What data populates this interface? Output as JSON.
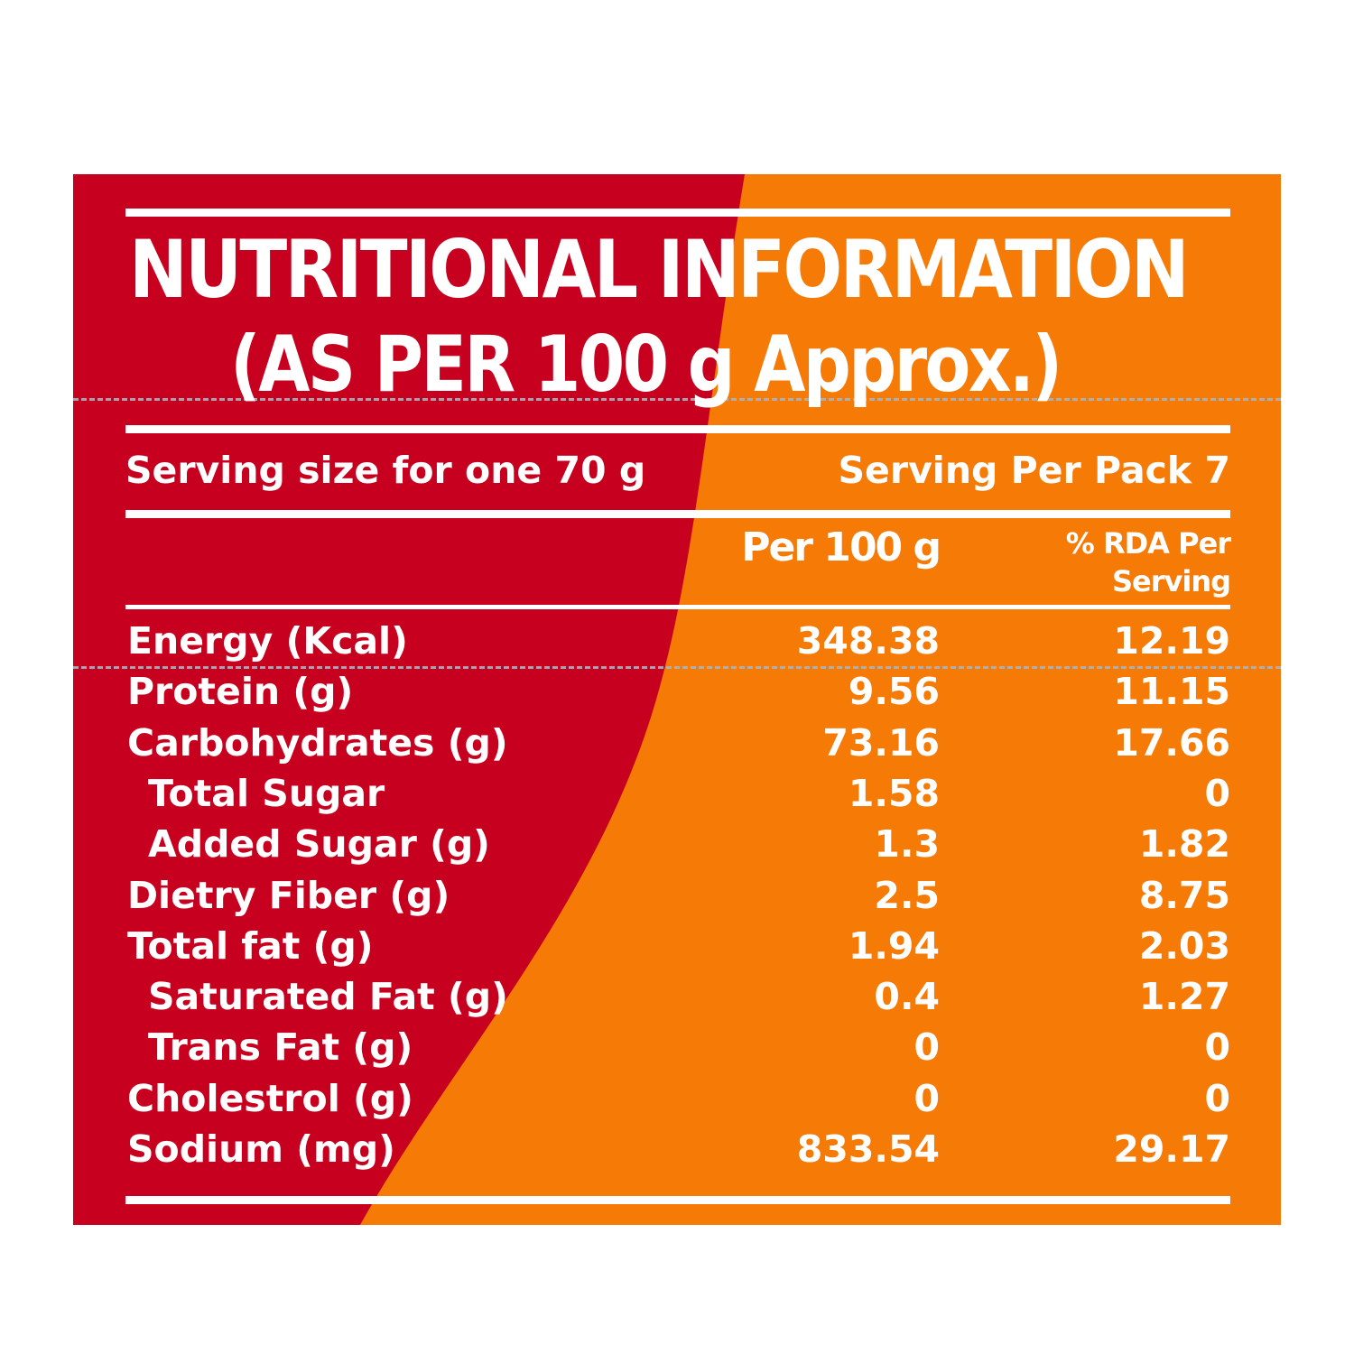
{
  "colors": {
    "red": "#c8001f",
    "orange": "#f57a06",
    "text": "#ffffff",
    "dash": "#a9b4bf"
  },
  "title": {
    "line1": "NUTRITIONAL INFORMATION",
    "line2": "(AS PER 100 g Approx.)"
  },
  "serving": {
    "size": "Serving size for one 70 g",
    "per_pack": "Serving Per Pack 7"
  },
  "columns": {
    "per100": "Per 100 g",
    "rda_line1": "% RDA Per",
    "rda_line2": "Serving"
  },
  "rows": [
    {
      "name": "Energy (Kcal)",
      "per100": "348.38",
      "rda": "12.19",
      "sub": false
    },
    {
      "name": "Protein (g)",
      "per100": "9.56",
      "rda": "11.15",
      "sub": false
    },
    {
      "name": "Carbohydrates (g)",
      "per100": "73.16",
      "rda": "17.66",
      "sub": false
    },
    {
      "name": "Total Sugar",
      "per100": "1.58",
      "rda": "0",
      "sub": true
    },
    {
      "name": "Added Sugar (g)",
      "per100": "1.3",
      "rda": "1.82",
      "sub": true
    },
    {
      "name": "Dietry Fiber (g)",
      "per100": "2.5",
      "rda": "8.75",
      "sub": false
    },
    {
      "name": "Total fat (g)",
      "per100": "1.94",
      "rda": "2.03",
      "sub": false
    },
    {
      "name": "Saturated Fat (g)",
      "per100": "0.4",
      "rda": "1.27",
      "sub": true
    },
    {
      "name": "Trans Fat (g)",
      "per100": "0",
      "rda": "0",
      "sub": true
    },
    {
      "name": "Cholestrol (g)",
      "per100": "0",
      "rda": "0",
      "sub": false
    },
    {
      "name": "Sodium (mg)",
      "per100": "833.54",
      "rda": "29.17",
      "sub": false
    }
  ]
}
